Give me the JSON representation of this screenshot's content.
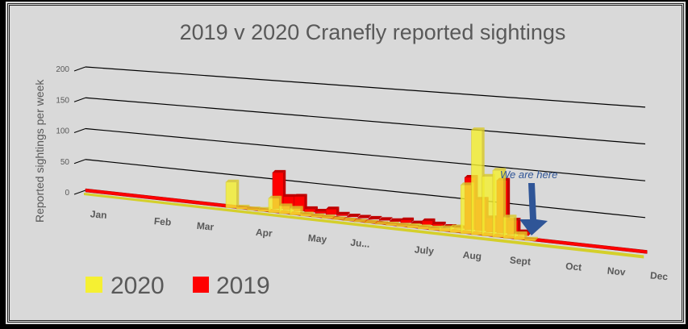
{
  "chart_data": {
    "type": "bar",
    "title": "2019 v 2020 Cranefly reported sightings",
    "ylabel": "Reported sightings per week",
    "xlabel": "",
    "ylim": [
      0,
      200
    ],
    "yticks": [
      "0",
      "50",
      "100",
      "150",
      "200"
    ],
    "months": [
      "Jan",
      "Feb",
      "Mar",
      "Apr",
      "May",
      "Ju...",
      "July",
      "Aug",
      "Sept",
      "Oct",
      "Nov",
      "Dec"
    ],
    "month_weeks": [
      2.5,
      8.5,
      12.5,
      18,
      23,
      27,
      33,
      37.5,
      42,
      47,
      51,
      55
    ],
    "weeks": 52,
    "series": [
      {
        "name": "2019",
        "color": "#ff0000",
        "values": [
          0,
          0,
          0,
          0,
          0,
          0,
          0,
          0,
          0,
          0,
          0,
          0,
          0,
          0,
          0,
          0,
          0,
          55,
          20,
          22,
          5,
          3,
          8,
          2,
          1,
          1,
          1,
          1,
          1,
          4,
          1,
          6,
          3,
          1,
          1,
          75,
          45,
          20,
          75,
          20,
          5,
          0,
          0,
          0,
          0,
          0,
          0,
          0,
          0,
          0,
          0,
          0
        ]
      },
      {
        "name": "2020",
        "color": "#f5f032",
        "values": [
          0,
          0,
          0,
          0,
          0,
          0,
          0,
          0,
          0,
          0,
          0,
          0,
          0,
          40,
          3,
          2,
          3,
          22,
          12,
          10,
          3,
          2,
          2,
          1,
          1,
          1,
          1,
          1,
          2,
          2,
          3,
          3,
          3,
          5,
          8,
          70,
          150,
          85,
          95,
          30,
          8,
          2,
          0,
          0,
          0,
          0,
          0,
          0,
          0,
          0,
          0,
          0
        ]
      }
    ],
    "legend": {
      "position": "bottom-left",
      "entries": [
        "2020",
        "2019"
      ]
    },
    "annotation": {
      "text": "We are here",
      "arrow_color": "#2f5597"
    },
    "grid": true
  }
}
